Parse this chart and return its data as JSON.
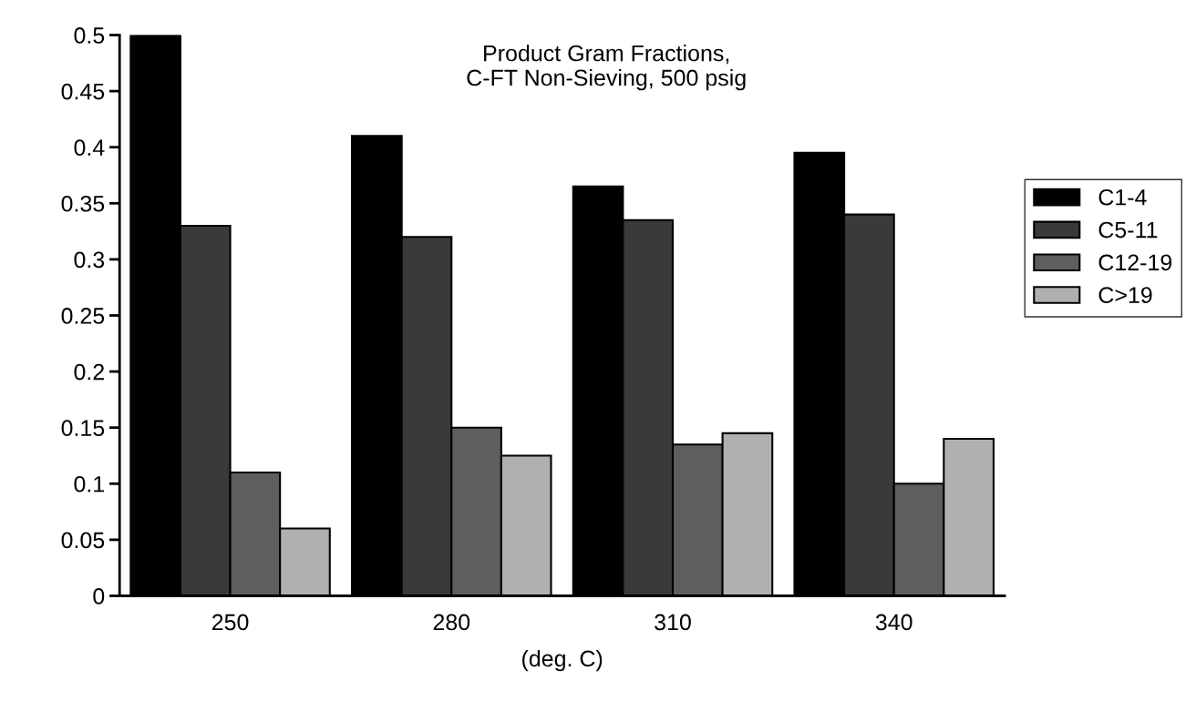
{
  "chart_data": {
    "type": "bar",
    "title": "Product Gram Fractions,\nC-FT Non-Sieving, 500 psig",
    "xlabel": "(deg. C)",
    "categories": [
      "250",
      "280",
      "310",
      "340"
    ],
    "series": [
      {
        "name": "C1-4",
        "color": "#000000",
        "values": [
          0.5,
          0.41,
          0.365,
          0.395
        ]
      },
      {
        "name": "C5-11",
        "color": "#3a3a3a",
        "values": [
          0.33,
          0.32,
          0.335,
          0.34
        ]
      },
      {
        "name": "C12-19",
        "color": "#5e5e5e",
        "values": [
          0.11,
          0.15,
          0.135,
          0.1
        ]
      },
      {
        "name": "C>19",
        "color": "#b0b0b0",
        "values": [
          0.06,
          0.125,
          0.145,
          0.14
        ]
      }
    ],
    "ylim": [
      0,
      0.5
    ],
    "yticks": [
      0,
      0.05,
      0.1,
      0.15,
      0.2,
      0.25,
      0.3,
      0.35,
      0.4,
      0.45,
      0.5
    ],
    "grid": false,
    "legend": "right"
  }
}
